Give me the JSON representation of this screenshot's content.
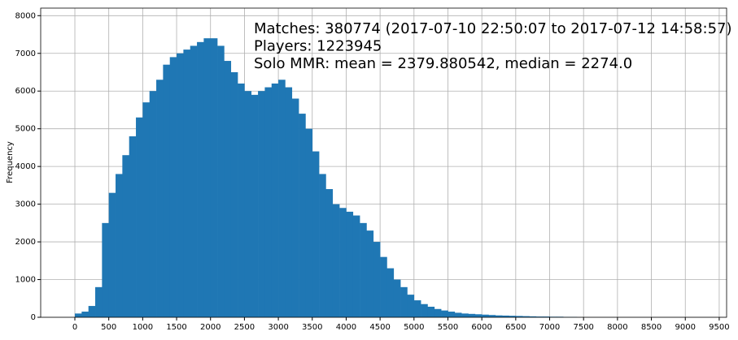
{
  "chart_data": {
    "type": "histogram",
    "annotation": [
      "Matches: 380774 (2017-07-10 22:50:07 to 2017-07-12 14:58:57)",
      "Players: 1223945",
      "Solo MMR: mean = 2379.880542, median = 2274.0"
    ],
    "ylabel": "Frequency",
    "color": "#1f77b4",
    "grid": true,
    "bins": [
      0,
      100,
      200,
      300,
      400,
      500,
      600,
      700,
      800,
      900,
      1000,
      1100,
      1200,
      1300,
      1400,
      1500,
      1600,
      1700,
      1800,
      1900,
      2000,
      2100,
      2200,
      2300,
      2400,
      2500,
      2600,
      2700,
      2800,
      2900,
      3000,
      3100,
      3200,
      3300,
      3400,
      3500,
      3600,
      3700,
      3800,
      3900,
      4000,
      4100,
      4200,
      4300,
      4400,
      4500,
      4600,
      4700,
      4800,
      4900,
      5000,
      5100,
      5200,
      5300,
      5400,
      5500,
      5600,
      5700,
      5800,
      5900,
      6000,
      6100,
      6200,
      6300,
      6400,
      6500,
      6600,
      6700,
      6800,
      6900,
      7000,
      7100,
      7200,
      7300,
      7400
    ],
    "counts": [
      100,
      150,
      300,
      800,
      2500,
      3300,
      3800,
      4300,
      4800,
      5300,
      5700,
      6000,
      6300,
      6700,
      6900,
      7000,
      7100,
      7200,
      7300,
      7400,
      7400,
      7200,
      6800,
      6500,
      6200,
      6000,
      5900,
      6000,
      6100,
      6200,
      6300,
      6100,
      5800,
      5400,
      5000,
      4400,
      3800,
      3400,
      3000,
      2900,
      2800,
      2700,
      2500,
      2300,
      2000,
      1600,
      1300,
      1000,
      800,
      600,
      450,
      350,
      280,
      220,
      180,
      150,
      120,
      100,
      90,
      80,
      70,
      60,
      50,
      45,
      40,
      35,
      30,
      25,
      20,
      20,
      15,
      15,
      10,
      10
    ],
    "xlim": [
      -504,
      9609
    ],
    "ylim": [
      0,
      8200
    ],
    "xticks": [
      0,
      500,
      1000,
      1500,
      2000,
      2500,
      3000,
      3500,
      4000,
      4500,
      5000,
      5500,
      6000,
      6500,
      7000,
      7500,
      8000,
      8500,
      9000,
      9500
    ],
    "yticks": [
      0,
      1000,
      2000,
      3000,
      4000,
      5000,
      6000,
      7000,
      8000
    ]
  }
}
